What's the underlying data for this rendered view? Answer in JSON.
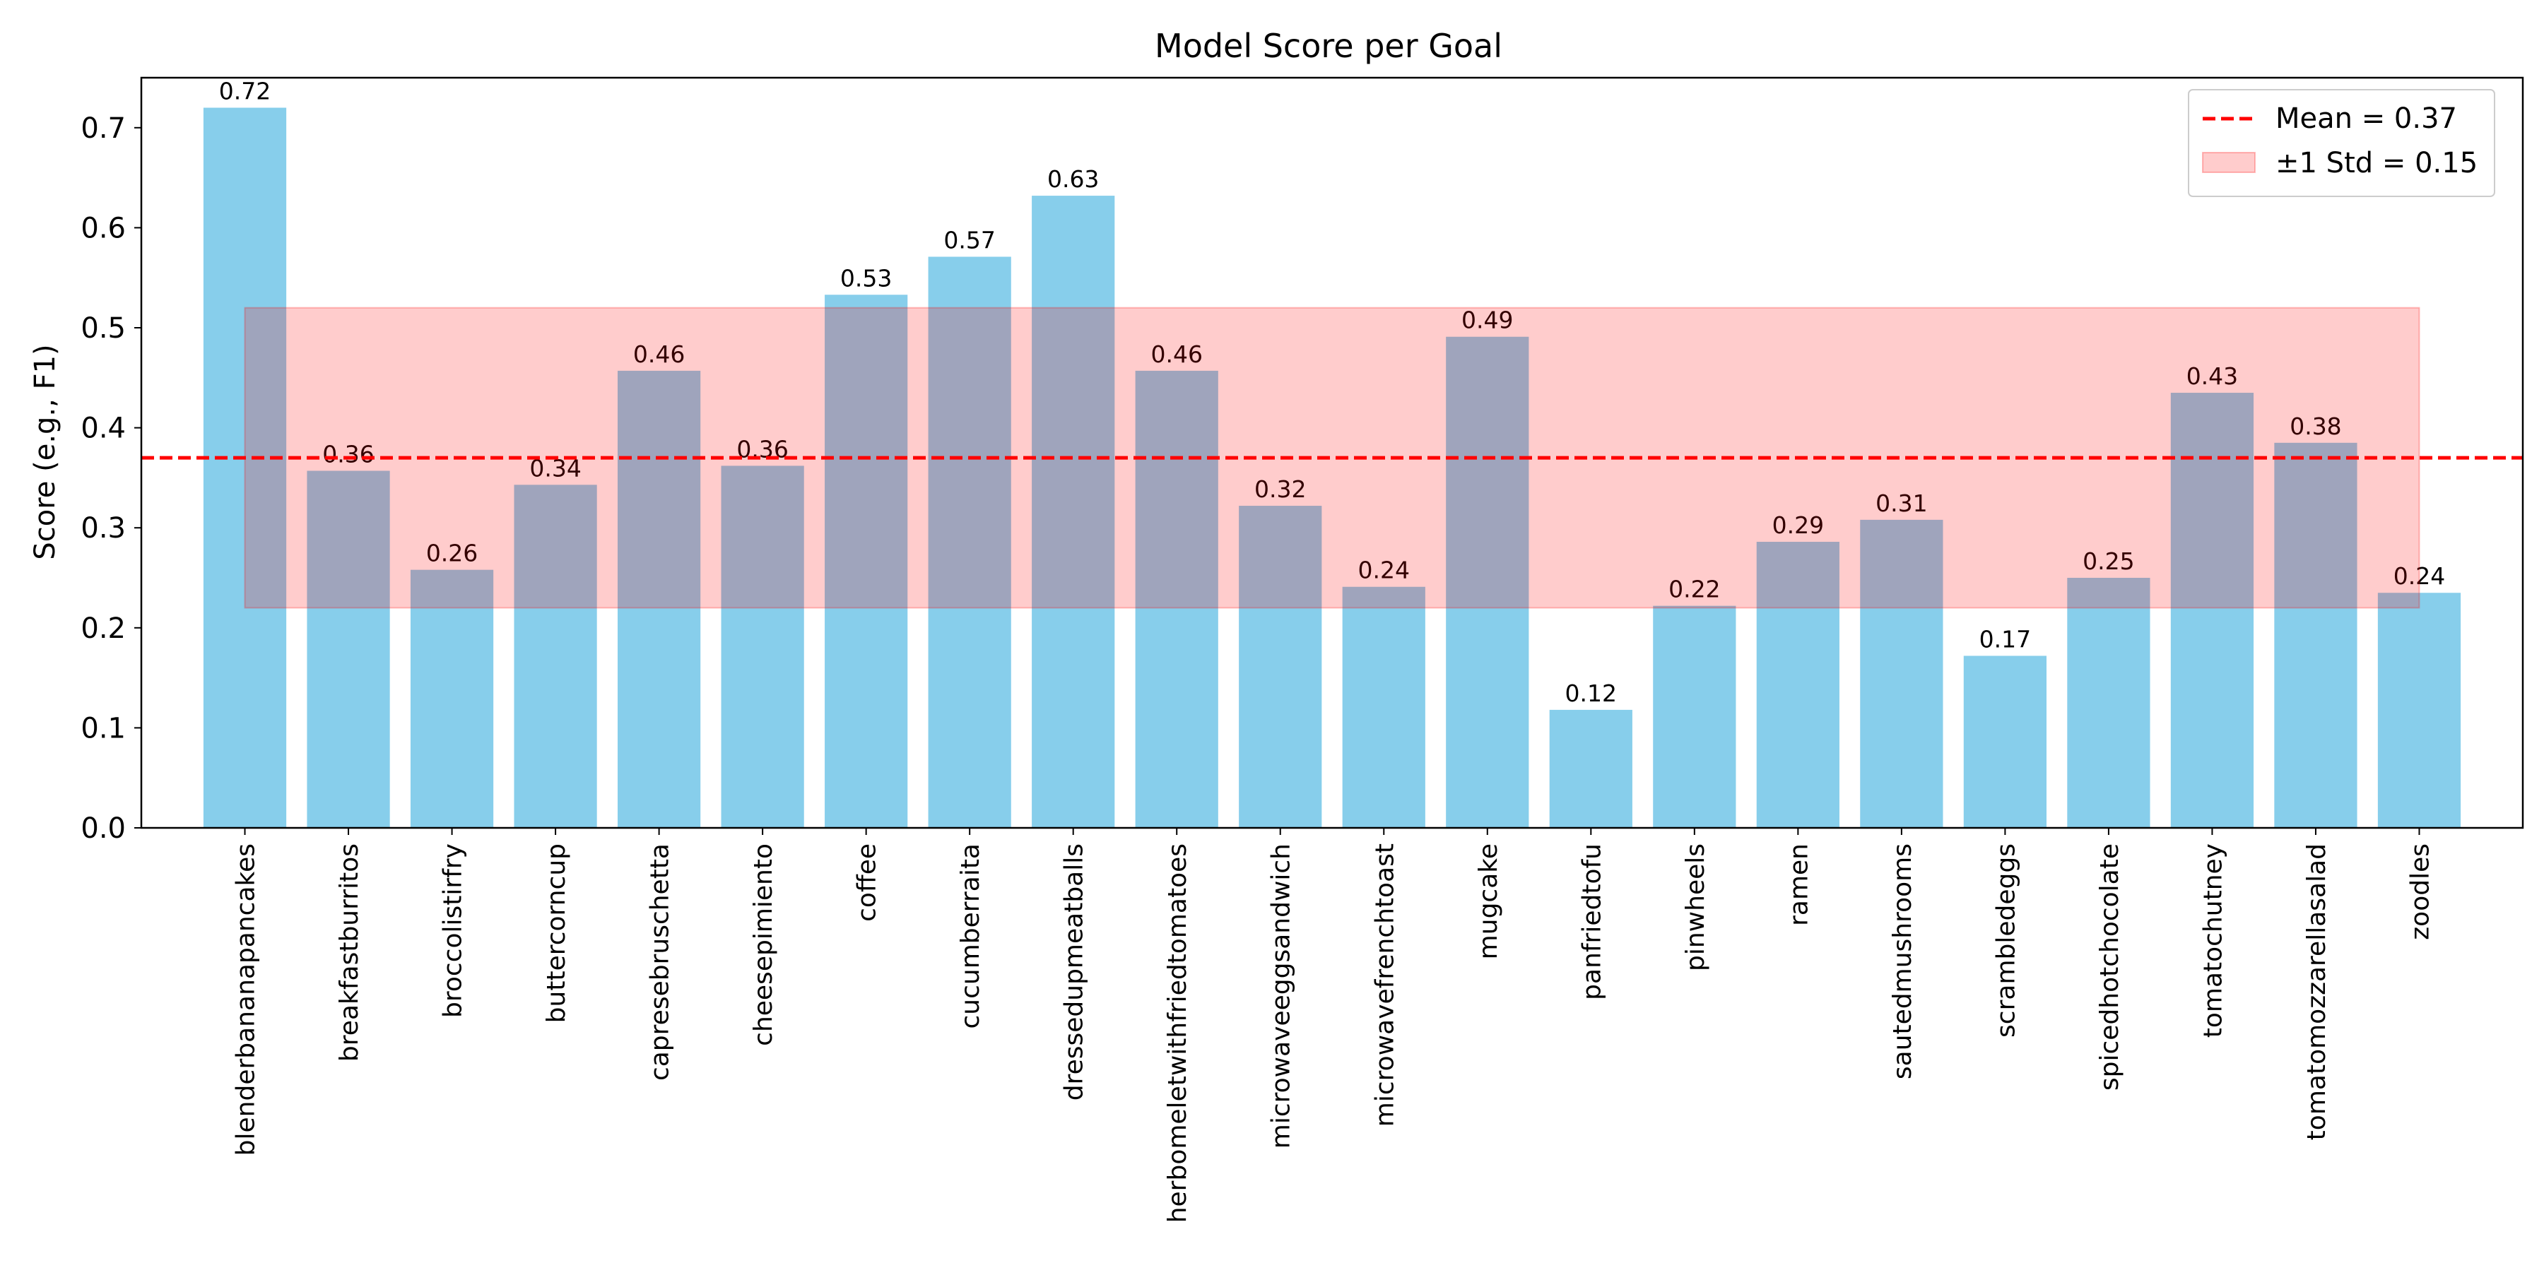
{
  "chart_data": {
    "type": "bar",
    "title": "Model Score per Goal",
    "xlabel": "",
    "ylabel": "Score (e.g., F1)",
    "ylim": [
      0,
      0.75
    ],
    "yticks": [
      0.0,
      0.1,
      0.2,
      0.3,
      0.4,
      0.5,
      0.6,
      0.7
    ],
    "ytick_labels": [
      "0.0",
      "0.1",
      "0.2",
      "0.3",
      "0.4",
      "0.5",
      "0.6",
      "0.7"
    ],
    "grid": false,
    "legend_position": "top-right",
    "categories": [
      "blenderbananapancakes",
      "breakfastburritos",
      "broccolistirfry",
      "buttercorncup",
      "capresebruschetta",
      "cheesepimiento",
      "coffee",
      "cucumberraita",
      "dressedupmeatballs",
      "herbomeletwithfriedtomatoes",
      "microwaveeggsandwich",
      "microwavefrenchtoast",
      "mugcake",
      "panfriedtofu",
      "pinwheels",
      "ramen",
      "sautedmushrooms",
      "scrambledeggs",
      "spicedhotchocolate",
      "tomatochutney",
      "tomatomozzarellasalad",
      "zoodles"
    ],
    "values": [
      0.72,
      0.357,
      0.258,
      0.343,
      0.457,
      0.362,
      0.533,
      0.571,
      0.632,
      0.457,
      0.322,
      0.241,
      0.491,
      0.118,
      0.222,
      0.286,
      0.308,
      0.172,
      0.25,
      0.435,
      0.385,
      0.235
    ],
    "value_labels": [
      "0.72",
      "0.36",
      "0.26",
      "0.34",
      "0.46",
      "0.36",
      "0.53",
      "0.57",
      "0.63",
      "0.46",
      "0.32",
      "0.24",
      "0.49",
      "0.12",
      "0.22",
      "0.29",
      "0.31",
      "0.17",
      "0.25",
      "0.43",
      "0.38",
      "0.24"
    ],
    "mean": 0.37,
    "std": 0.15,
    "band": [
      0.22,
      0.52
    ],
    "legend": {
      "mean_label": "Mean = 0.37",
      "std_label": "±1 Std = 0.15"
    },
    "colors": {
      "bar": "#87ceeb",
      "mean_line": "#ff0000",
      "std_band": "#ff0000",
      "axes": "#000000"
    }
  }
}
